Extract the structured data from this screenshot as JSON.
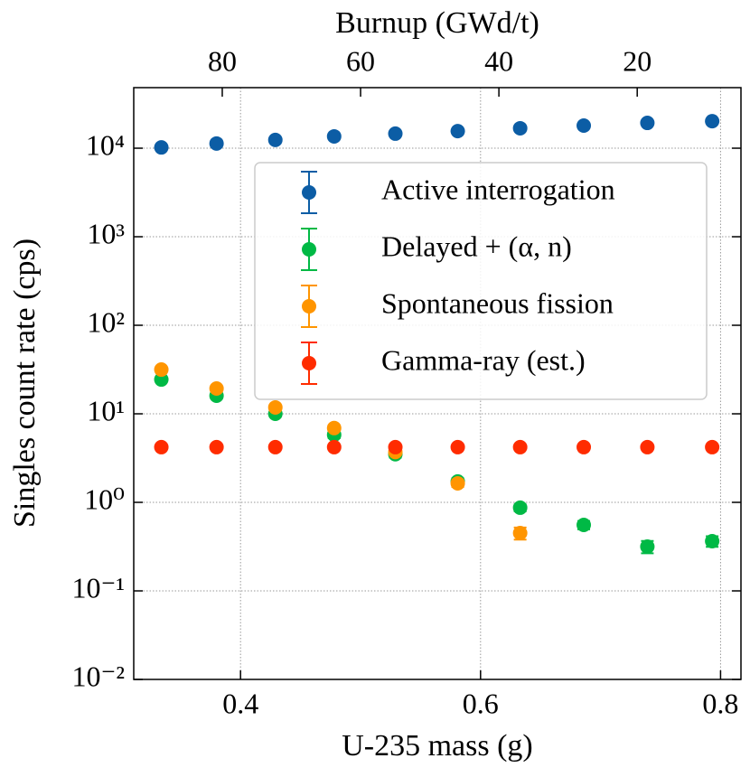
{
  "chart_data": {
    "type": "scatter",
    "xlabel": "U-235 mass (g)",
    "ylabel": "Singles count rate (cps)",
    "x2label": "Burnup (GWd/t)",
    "x": [
      0.334,
      0.38,
      0.429,
      0.478,
      0.529,
      0.581,
      0.633,
      0.686,
      0.739,
      0.793
    ],
    "series": [
      {
        "name": "Active interrogation",
        "color": "#0C5DA5",
        "values": [
          10200,
          11300,
          12400,
          13600,
          14600,
          15600,
          16800,
          18000,
          19300,
          20200
        ],
        "errors": [
          300,
          300,
          300,
          300,
          300,
          300,
          300,
          300,
          300,
          300
        ]
      },
      {
        "name": "Delayed + (α, n)",
        "color": "#00B945",
        "values": [
          24.4,
          16.0,
          10.0,
          5.8,
          3.5,
          1.72,
          0.87,
          0.556,
          0.316,
          0.364
        ],
        "errors": [
          1.5,
          1.0,
          0.7,
          0.5,
          0.3,
          0.15,
          0.08,
          0.06,
          0.05,
          0.05
        ]
      },
      {
        "name": "Spontaneous fission",
        "color": "#FF9500",
        "values": [
          31.6,
          19.3,
          11.8,
          6.9,
          3.7,
          1.64,
          0.45,
          null,
          null,
          null
        ],
        "errors": [
          1.5,
          1.0,
          0.7,
          0.5,
          0.3,
          0.15,
          0.07,
          null,
          null,
          null
        ]
      },
      {
        "name": "Gamma-ray (est.)",
        "color": "#FF2C00",
        "values": [
          4.2,
          4.2,
          4.2,
          4.2,
          4.2,
          4.2,
          4.2,
          4.2,
          4.2,
          4.2
        ],
        "errors": [
          0.2,
          0.2,
          0.2,
          0.2,
          0.2,
          0.2,
          0.2,
          0.2,
          0.2,
          0.2
        ]
      }
    ],
    "xlim": [
      0.311,
      0.817
    ],
    "xticks": [
      0.4,
      0.6,
      0.8
    ],
    "x2lim": [
      92.8,
      5.0
    ],
    "x2ticks": [
      80,
      60,
      40,
      20
    ],
    "ylim": [
      0.01,
      48300
    ],
    "yscale": "log",
    "yticks": [
      {
        "value": 0.01,
        "label": "10⁻²"
      },
      {
        "value": 0.1,
        "label": "10⁻¹"
      },
      {
        "value": 1,
        "label": "10⁰"
      },
      {
        "value": 10,
        "label": "10¹"
      },
      {
        "value": 100,
        "label": "10²"
      },
      {
        "value": 1000,
        "label": "10³"
      },
      {
        "value": 10000,
        "label": "10⁴"
      }
    ],
    "grid": true,
    "legend": "upper right"
  }
}
